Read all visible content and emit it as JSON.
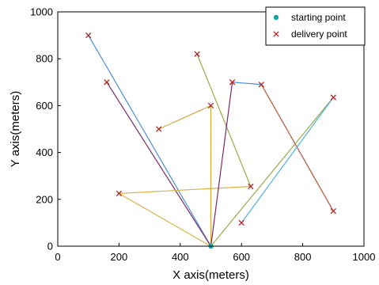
{
  "chart_data": {
    "type": "scatter",
    "title": "",
    "xlabel": "X axis(meters)",
    "ylabel": "Y axis(meters)",
    "xlim": [
      0,
      1000
    ],
    "ylim": [
      0,
      1000
    ],
    "xticks": [
      0,
      200,
      400,
      600,
      800,
      1000
    ],
    "yticks": [
      0,
      200,
      400,
      600,
      800,
      1000
    ],
    "grid": false,
    "legend_position": "top-right",
    "legend": [
      {
        "label": "starting point",
        "marker": "dot",
        "color": "#1aa3a3"
      },
      {
        "label": "delivery point",
        "marker": "x",
        "color": "#b22222"
      }
    ],
    "starting_point": {
      "x": 500,
      "y": 0
    },
    "delivery_points": [
      {
        "x": 100,
        "y": 900
      },
      {
        "x": 160,
        "y": 700
      },
      {
        "x": 200,
        "y": 225
      },
      {
        "x": 330,
        "y": 500
      },
      {
        "x": 455,
        "y": 820
      },
      {
        "x": 500,
        "y": 600
      },
      {
        "x": 570,
        "y": 700
      },
      {
        "x": 600,
        "y": 100
      },
      {
        "x": 630,
        "y": 255
      },
      {
        "x": 665,
        "y": 690
      },
      {
        "x": 900,
        "y": 635
      },
      {
        "x": 900,
        "y": 150
      }
    ],
    "routes": [
      {
        "color": "#4a8fd6",
        "points": [
          [
            500,
            0
          ],
          [
            100,
            900
          ]
        ]
      },
      {
        "color": "#7a2a6a",
        "points": [
          [
            500,
            0
          ],
          [
            160,
            700
          ]
        ]
      },
      {
        "color": "#d9b24a",
        "points": [
          [
            500,
            0
          ],
          [
            200,
            225
          ],
          [
            630,
            255
          ]
        ]
      },
      {
        "color": "#d4a83a",
        "points": [
          [
            500,
            0
          ],
          [
            500,
            600
          ],
          [
            330,
            500
          ]
        ]
      },
      {
        "color": "#9aa94a",
        "points": [
          [
            455,
            820
          ],
          [
            630,
            255
          ]
        ]
      },
      {
        "color": "#7a2a6a",
        "points": [
          [
            500,
            0
          ],
          [
            570,
            700
          ]
        ]
      },
      {
        "color": "#4a8fd6",
        "points": [
          [
            570,
            700
          ],
          [
            665,
            690
          ]
        ]
      },
      {
        "color": "#b5533a",
        "points": [
          [
            665,
            690
          ],
          [
            900,
            150
          ]
        ]
      },
      {
        "color": "#9aa94a",
        "points": [
          [
            500,
            0
          ],
          [
            900,
            635
          ]
        ]
      },
      {
        "color": "#4ab3d6",
        "points": [
          [
            900,
            635
          ],
          [
            600,
            100
          ]
        ]
      }
    ]
  }
}
